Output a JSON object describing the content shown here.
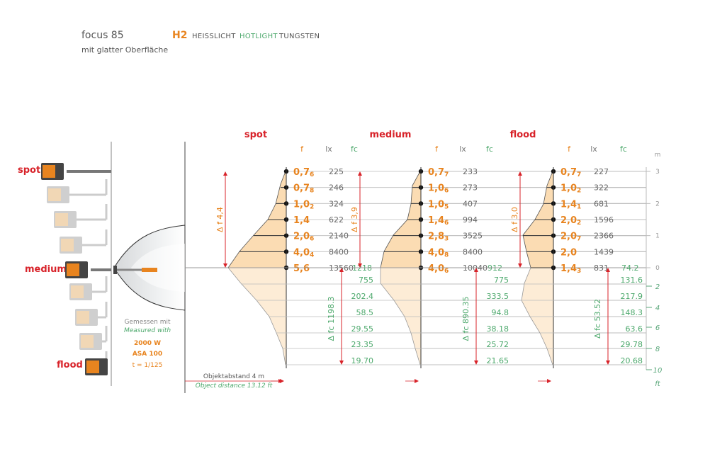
{
  "colors": {
    "red": "#d8232a",
    "orange": "#e8841f",
    "green": "#4ea96d",
    "gray": "#666666",
    "fill": "#fbdcb3"
  },
  "header": {
    "product": "focus 85",
    "subtitle": "mit glatter Oberfläche",
    "code": "H2",
    "label_de": "HEISSLICHT",
    "label_en": "HOTLIGHT",
    "label_tungsten": "TUNGSTEN"
  },
  "left_panel": {
    "spot_label": "spot",
    "medium_label": "medium",
    "flood_label": "flood",
    "measured_de": "Gemessen mit",
    "measured_en": "Measured with",
    "power": "2000 W",
    "asa": "ASA 100",
    "shutter": "t = 1/125"
  },
  "distance_label": {
    "de": "Objektabstand  4 m",
    "en": "Object distance 13.12 ft"
  },
  "scale": {
    "m_unit": "m",
    "ft_unit": "ft",
    "m_ticks": [
      "3",
      "2",
      "1",
      "0"
    ],
    "ft_ticks": [
      "2",
      "4",
      "6",
      "8",
      "10"
    ]
  },
  "chart_data": [
    {
      "type": "table",
      "title": "spot",
      "headers": {
        "f": "f",
        "lx": "lx",
        "fc": "fc"
      },
      "distance_m": [
        3,
        2.5,
        2,
        1.5,
        1,
        0.5,
        0
      ],
      "f": [
        "0,7",
        "0,7",
        "1,0",
        "1,4",
        "2,0",
        "4,0",
        "5,6"
      ],
      "f_sub": [
        "6",
        "8",
        "2",
        "",
        "6",
        "4",
        ""
      ],
      "lx": [
        "225",
        "246",
        "324",
        "622",
        "2140",
        "8400",
        "13560"
      ],
      "fc_at_0": "1218",
      "distance_ft": [
        2,
        4,
        6,
        8,
        10
      ],
      "fc_ft": [
        "755",
        "202.4",
        "58.5",
        "29.55",
        "23.35",
        "19.70"
      ],
      "delta_f": "Δ f 4,4",
      "delta_fc": "Δ fc 1198.3"
    },
    {
      "type": "table",
      "title": "medium",
      "headers": {
        "f": "f",
        "lx": "lx",
        "fc": "fc"
      },
      "distance_m": [
        3,
        2.5,
        2,
        1.5,
        1,
        0.5,
        0
      ],
      "f": [
        "0,7",
        "1,0",
        "1,0",
        "1,4",
        "2,8",
        "4,0",
        "4,0"
      ],
      "f_sub": [
        "7",
        "6",
        "5",
        "6",
        "3",
        "8",
        "6"
      ],
      "lx": [
        "233",
        "273",
        "407",
        "994",
        "3525",
        "8400",
        "10040"
      ],
      "fc_at_0": "912",
      "distance_ft": [
        2,
        4,
        6,
        8,
        10
      ],
      "fc_ft": [
        "775",
        "333.5",
        "94.8",
        "38.18",
        "25.72",
        "21.65"
      ],
      "delta_f": "Δ f 3,9",
      "delta_fc": "Δ fc 890.35"
    },
    {
      "type": "table",
      "title": "flood",
      "headers": {
        "f": "f",
        "lx": "lx",
        "fc": "fc"
      },
      "distance_m": [
        3,
        2.5,
        2,
        1.5,
        1,
        0.5,
        0
      ],
      "f": [
        "0,7",
        "1,0",
        "1,4",
        "2,0",
        "2,0",
        "2,0",
        "1,4"
      ],
      "f_sub": [
        "7",
        "2",
        "1",
        "2",
        "7",
        "",
        "3"
      ],
      "lx": [
        "227",
        "322",
        "681",
        "1596",
        "2366",
        "1439",
        "831"
      ],
      "fc_at_0": "74.2",
      "distance_ft": [
        2,
        4,
        6,
        8,
        10
      ],
      "fc_ft": [
        "131.6",
        "217.9",
        "148.3",
        "63.6",
        "29.78",
        "20.68"
      ],
      "delta_f": "Δ f 3,0",
      "delta_fc": "Δ fc 53.52"
    }
  ]
}
